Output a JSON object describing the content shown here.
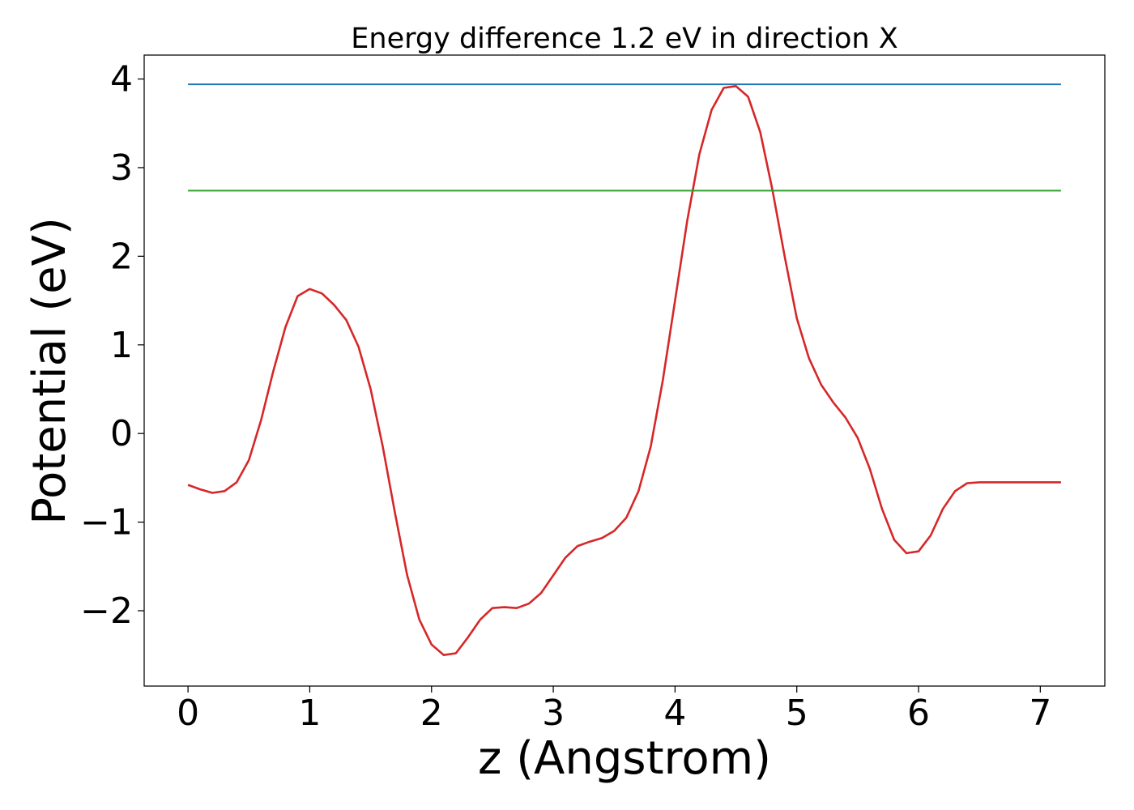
{
  "chart_data": {
    "type": "line",
    "title": "Energy difference 1.2 eV in direction X",
    "xlabel": "z (Angstrom)",
    "ylabel": "Potential (eV)",
    "xlim": [
      -0.36,
      7.53
    ],
    "ylim": [
      -2.85,
      4.27
    ],
    "xticks": [
      0,
      1,
      2,
      3,
      4,
      5,
      6,
      7
    ],
    "yticks": [
      -2,
      -1,
      0,
      1,
      2,
      3,
      4
    ],
    "xtick_labels": [
      "0",
      "1",
      "2",
      "3",
      "4",
      "5",
      "6",
      "7"
    ],
    "ytick_labels": [
      "−2",
      "−1",
      "0",
      "1",
      "2",
      "3",
      "4"
    ],
    "grid": false,
    "series": [
      {
        "color": "#d62728",
        "style": "curve",
        "x": [
          0,
          0.1,
          0.2,
          0.3,
          0.4,
          0.5,
          0.6,
          0.7,
          0.8,
          0.9,
          1.0,
          1.1,
          1.2,
          1.3,
          1.4,
          1.5,
          1.6,
          1.7,
          1.8,
          1.9,
          2.0,
          2.1,
          2.2,
          2.3,
          2.4,
          2.5,
          2.6,
          2.7,
          2.8,
          2.9,
          3.0,
          3.1,
          3.2,
          3.3,
          3.4,
          3.5,
          3.6,
          3.7,
          3.8,
          3.9,
          4.0,
          4.1,
          4.2,
          4.3,
          4.4,
          4.5,
          4.6,
          4.7,
          4.8,
          4.9,
          5.0,
          5.1,
          5.2,
          5.3,
          5.4,
          5.5,
          5.6,
          5.7,
          5.8,
          5.9,
          6.0,
          6.1,
          6.2,
          6.3,
          6.4,
          6.5,
          6.6,
          6.7,
          6.8,
          6.9,
          7.0,
          7.1,
          7.17
        ],
        "y": [
          -0.58,
          -0.63,
          -0.67,
          -0.65,
          -0.55,
          -0.3,
          0.15,
          0.7,
          1.2,
          1.55,
          1.63,
          1.58,
          1.45,
          1.28,
          0.98,
          0.5,
          -0.15,
          -0.9,
          -1.6,
          -2.1,
          -2.38,
          -2.5,
          -2.48,
          -2.3,
          -2.1,
          -1.97,
          -1.96,
          -1.97,
          -1.92,
          -1.8,
          -1.6,
          -1.4,
          -1.27,
          -1.22,
          -1.18,
          -1.1,
          -0.95,
          -0.65,
          -0.15,
          0.6,
          1.5,
          2.4,
          3.15,
          3.65,
          3.9,
          3.92,
          3.8,
          3.4,
          2.75,
          2.0,
          1.3,
          0.85,
          0.55,
          0.35,
          0.18,
          -0.05,
          -0.4,
          -0.85,
          -1.2,
          -1.35,
          -1.33,
          -1.15,
          -0.85,
          -0.65,
          -0.56,
          -0.55,
          -0.55,
          -0.55,
          -0.55,
          -0.55,
          -0.55,
          -0.55,
          -0.55
        ]
      },
      {
        "color": "#1f77b4",
        "style": "hline",
        "x": [
          0,
          7.17
        ],
        "y": [
          3.94,
          3.94
        ]
      },
      {
        "color": "#2ca02c",
        "style": "hline",
        "x": [
          0,
          7.17
        ],
        "y": [
          2.74,
          2.74
        ]
      }
    ]
  }
}
